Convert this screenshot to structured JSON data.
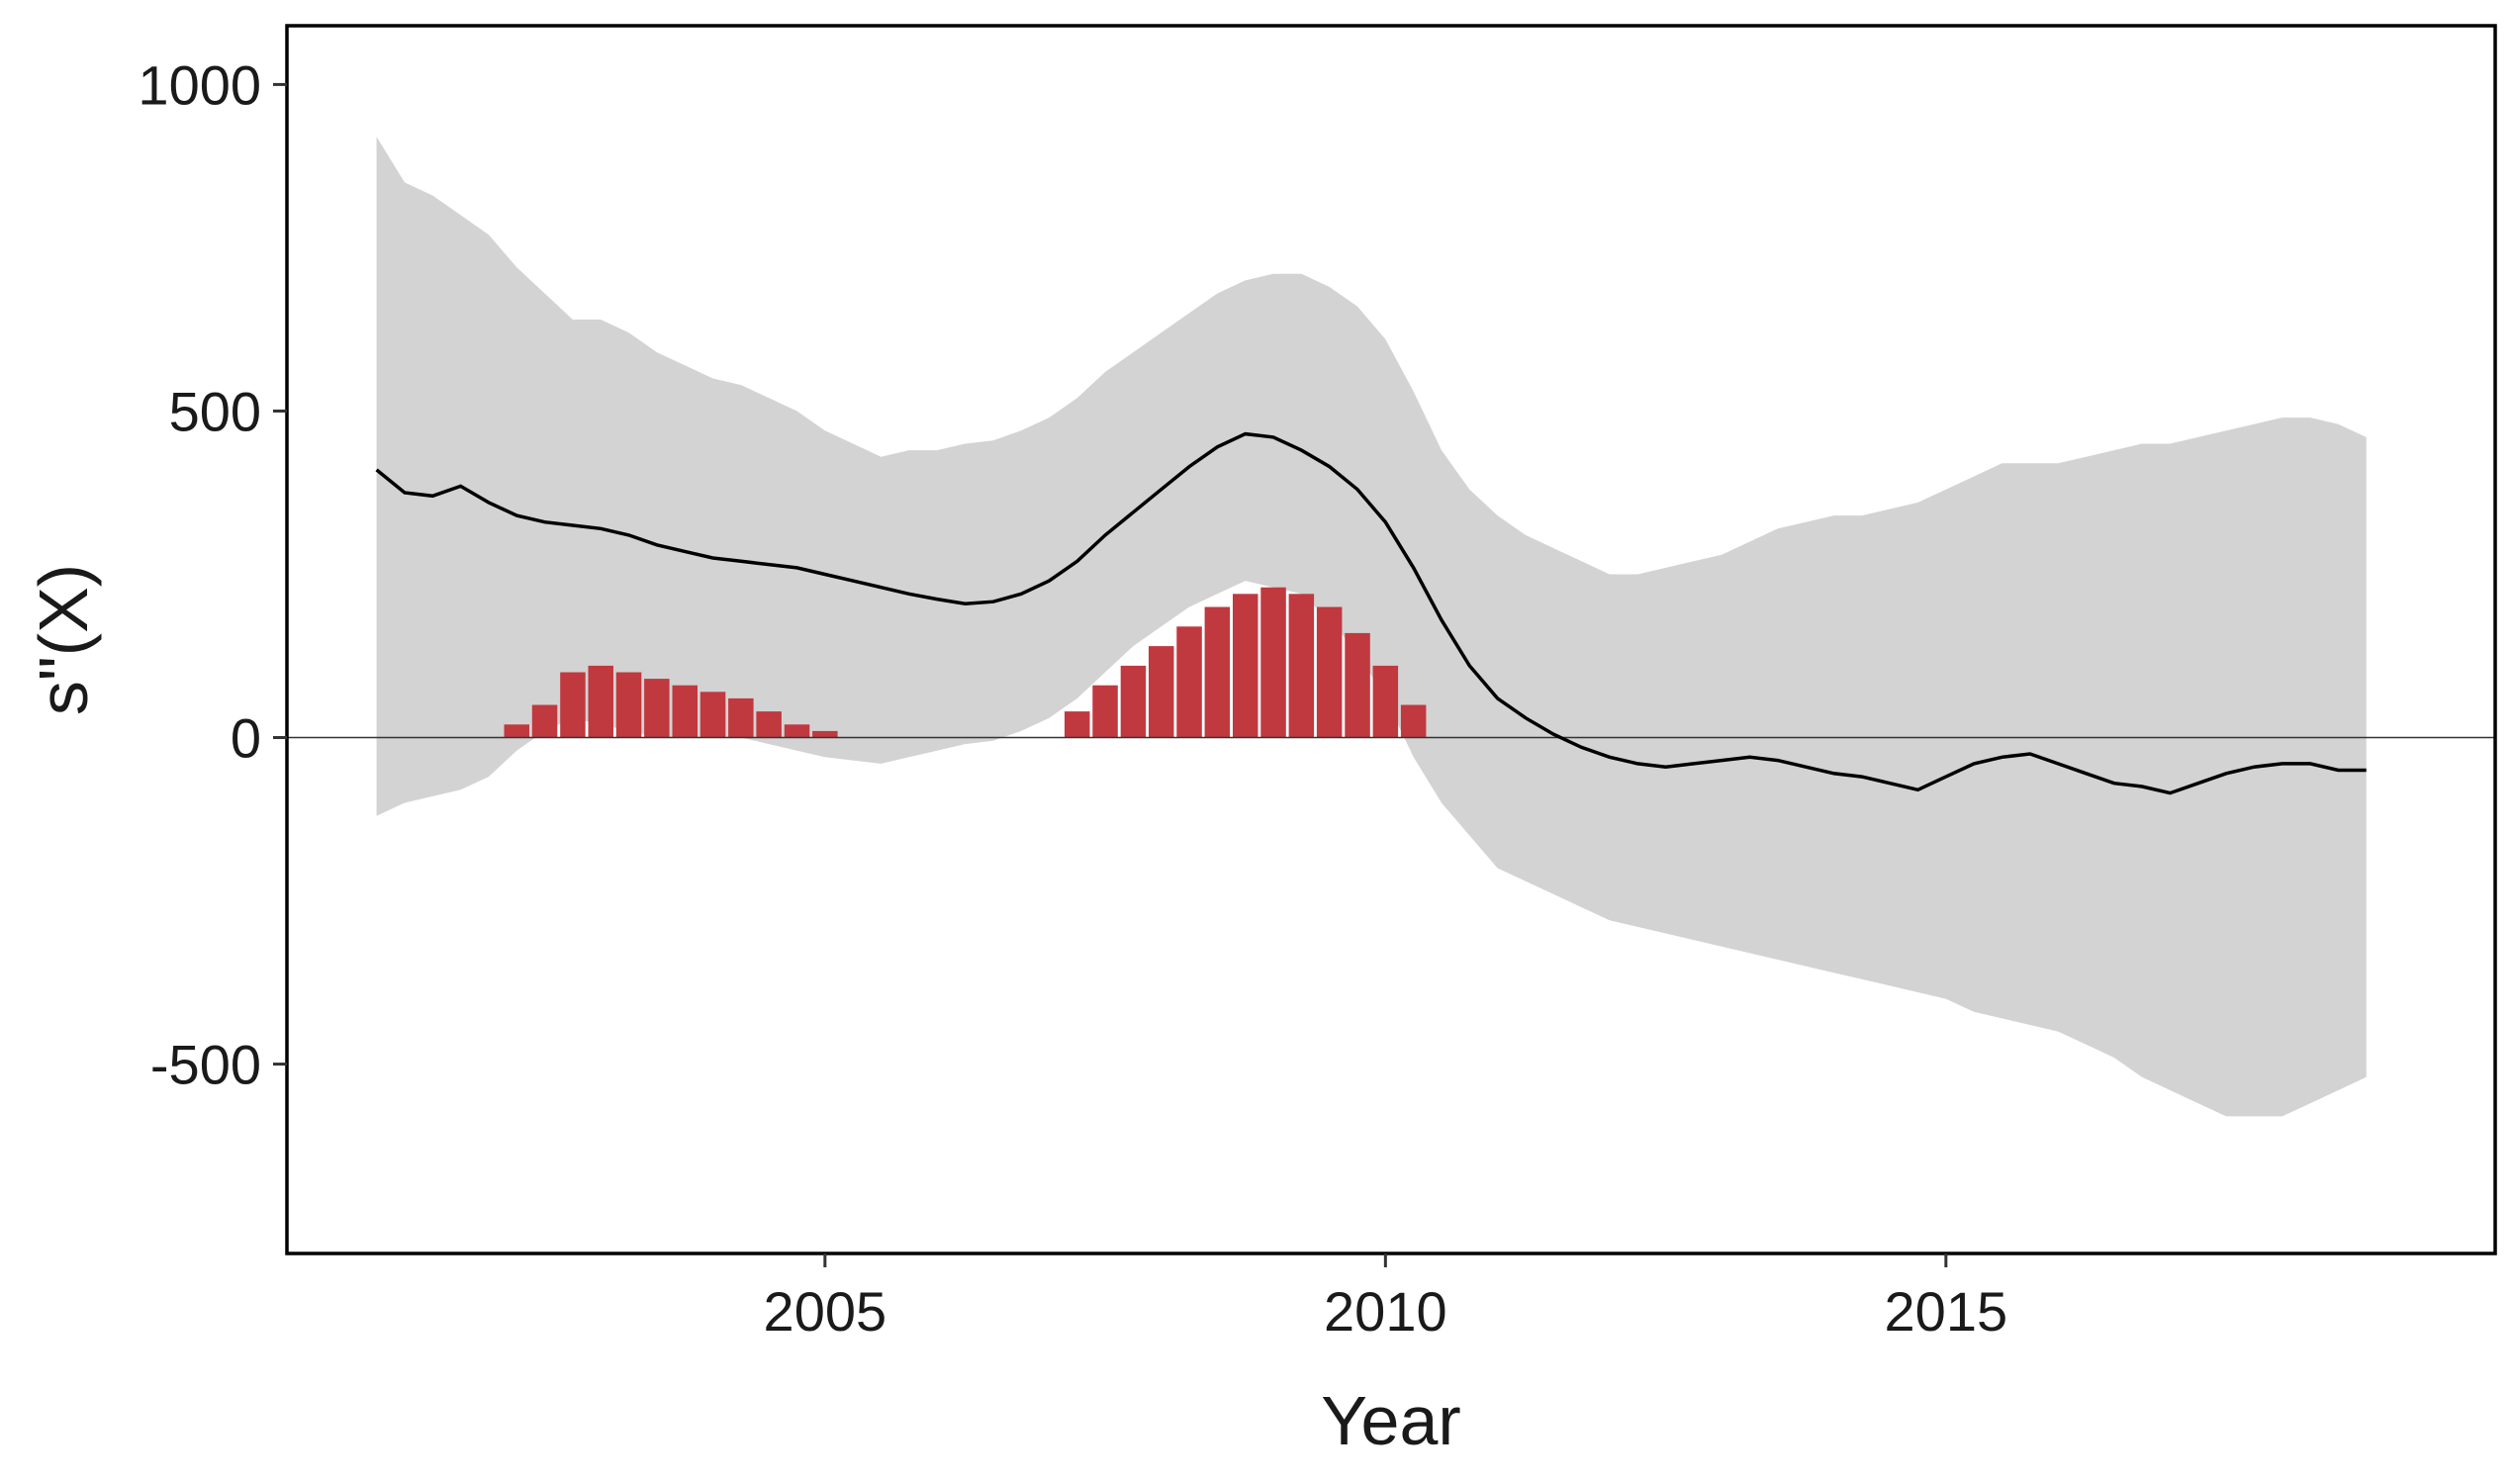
{
  "chart_data": {
    "type": "line",
    "title": "",
    "xlabel": "Year",
    "ylabel": "s\"(X)",
    "xlim": [
      2000.2,
      2019.9
    ],
    "ylim": [
      -790,
      1090
    ],
    "x_ticks": [
      2005,
      2010,
      2015
    ],
    "y_ticks": [
      -500,
      0,
      500,
      1000
    ],
    "grid": false,
    "legend": "none",
    "reference_line": {
      "y": 0
    },
    "colors": {
      "band": "#d3d3d3",
      "line": "#000000",
      "bars": "#c0393f",
      "axis": "#000000"
    },
    "series": [
      {
        "role": "estimate",
        "x_start": 2001.0,
        "step": 0.25,
        "values": [
          410,
          375,
          370,
          385,
          360,
          340,
          330,
          325,
          320,
          310,
          295,
          285,
          275,
          270,
          265,
          260,
          250,
          240,
          230,
          220,
          212,
          205,
          208,
          220,
          240,
          270,
          310,
          345,
          380,
          415,
          445,
          465,
          460,
          440,
          415,
          380,
          330,
          260,
          180,
          110,
          60,
          30,
          5,
          -15,
          -30,
          -40,
          -45,
          -40,
          -35,
          -30,
          -35,
          -45,
          -55,
          -60,
          -70,
          -80,
          -60,
          -40,
          -30,
          -25,
          -40,
          -55,
          -70,
          -75,
          -85,
          -70,
          -55,
          -45,
          -40,
          -40,
          -50,
          -50
        ]
      },
      {
        "role": "upper_band",
        "x_start": 2001.0,
        "step": 0.25,
        "values": [
          920,
          850,
          830,
          800,
          770,
          720,
          680,
          640,
          640,
          620,
          590,
          570,
          550,
          540,
          520,
          500,
          470,
          450,
          430,
          440,
          440,
          450,
          455,
          470,
          490,
          520,
          560,
          590,
          620,
          650,
          680,
          700,
          710,
          710,
          690,
          660,
          610,
          530,
          440,
          380,
          340,
          310,
          290,
          270,
          250,
          250,
          260,
          270,
          280,
          300,
          320,
          330,
          340,
          340,
          350,
          360,
          380,
          400,
          420,
          420,
          420,
          430,
          440,
          450,
          450,
          460,
          470,
          480,
          490,
          490,
          480,
          460
        ]
      },
      {
        "role": "lower_band",
        "x_start": 2001.0,
        "step": 0.25,
        "values": [
          -120,
          -100,
          -90,
          -80,
          -60,
          -20,
          10,
          30,
          20,
          10,
          0,
          0,
          0,
          0,
          -10,
          -20,
          -30,
          -35,
          -40,
          -30,
          -20,
          -10,
          -5,
          10,
          30,
          60,
          100,
          140,
          170,
          200,
          220,
          240,
          230,
          220,
          180,
          130,
          60,
          -30,
          -100,
          -150,
          -200,
          -220,
          -240,
          -260,
          -280,
          -290,
          -300,
          -310,
          -320,
          -330,
          -340,
          -350,
          -360,
          -370,
          -380,
          -390,
          -400,
          -420,
          -430,
          -440,
          -450,
          -470,
          -490,
          -520,
          -540,
          -560,
          -580,
          -580,
          -580,
          -560,
          -540,
          -520
        ]
      },
      {
        "role": "significant_bars",
        "x_start": 2001.0,
        "step": 0.25,
        "values": [
          0,
          0,
          0,
          0,
          0,
          20,
          50,
          100,
          110,
          100,
          90,
          80,
          70,
          60,
          40,
          20,
          10,
          0,
          0,
          0,
          0,
          0,
          0,
          0,
          0,
          40,
          80,
          110,
          140,
          170,
          200,
          220,
          230,
          220,
          200,
          160,
          110,
          50,
          0,
          0,
          0,
          0,
          0,
          0,
          0,
          0,
          0,
          0,
          0,
          0,
          0,
          0,
          0,
          0,
          0,
          0,
          0,
          0,
          0,
          0,
          0,
          0,
          0,
          0,
          0,
          0,
          0,
          0,
          0,
          0,
          0,
          0
        ]
      }
    ]
  }
}
